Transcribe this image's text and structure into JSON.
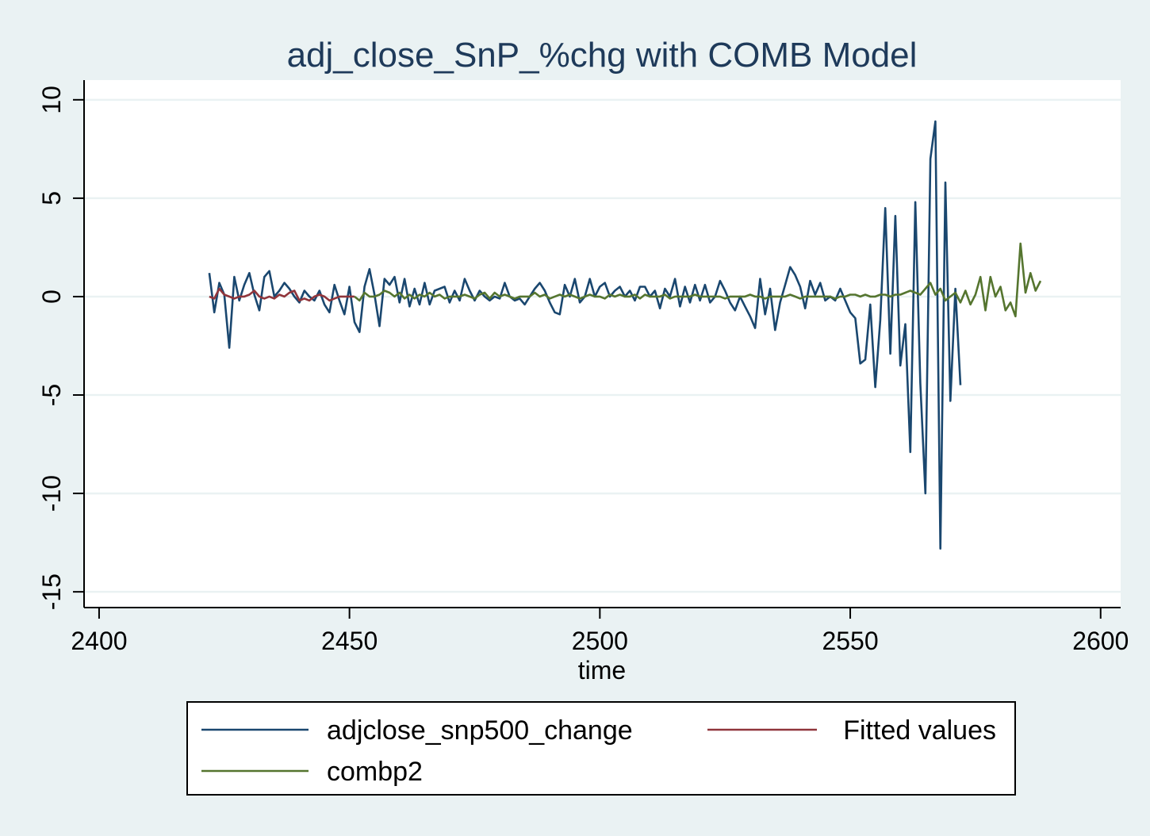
{
  "chart_data": {
    "type": "line",
    "title": "adj_close_SnP_%chg with COMB Model",
    "xlabel": "time",
    "ylabel": "",
    "xlim": [
      2397,
      2604
    ],
    "ylim": [
      -15.8,
      11.0
    ],
    "xticks": [
      2400,
      2450,
      2500,
      2550,
      2600
    ],
    "yticks": [
      -15,
      -10,
      -5,
      0,
      5,
      10
    ],
    "grid": true,
    "legend_position": "bottom",
    "series": [
      {
        "name": "adjclose_snp500_change",
        "color": "#1a476f",
        "x_start": 2422,
        "values": [
          1.2,
          -0.8,
          0.7,
          0.1,
          -2.6,
          1.0,
          -0.2,
          0.6,
          1.2,
          0.1,
          -0.7,
          1.0,
          1.3,
          0.0,
          0.3,
          0.7,
          0.4,
          0.0,
          -0.3,
          0.3,
          0.0,
          -0.2,
          0.3,
          -0.4,
          -0.8,
          0.6,
          -0.2,
          -0.9,
          0.5,
          -1.3,
          -1.8,
          0.5,
          1.4,
          0.1,
          -1.5,
          0.9,
          0.6,
          1.0,
          -0.3,
          0.9,
          -0.5,
          0.4,
          -0.4,
          0.7,
          -0.4,
          0.3,
          0.4,
          0.5,
          -0.3,
          0.3,
          -0.2,
          0.9,
          0.3,
          -0.2,
          0.3,
          0.0,
          -0.2,
          0.0,
          -0.1,
          0.7,
          0.0,
          -0.2,
          -0.1,
          -0.4,
          0.0,
          0.4,
          0.7,
          0.3,
          -0.3,
          -0.8,
          -0.9,
          0.6,
          0.0,
          0.9,
          -0.3,
          0.0,
          0.9,
          0.0,
          0.5,
          0.7,
          0.0,
          0.3,
          0.5,
          0.0,
          0.3,
          -0.2,
          0.5,
          0.5,
          0.0,
          0.3,
          -0.6,
          0.4,
          0.0,
          0.9,
          -0.5,
          0.5,
          -0.3,
          0.6,
          -0.2,
          0.6,
          -0.3,
          0.0,
          0.8,
          0.3,
          -0.3,
          -0.7,
          0.0,
          -0.5,
          -1.0,
          -1.6,
          0.9,
          -0.9,
          0.4,
          -1.7,
          -0.3,
          0.6,
          1.5,
          1.1,
          0.5,
          -0.6,
          0.8,
          0.1,
          0.7,
          -0.2,
          0.0,
          -0.2,
          0.4,
          -0.2,
          -0.8,
          -1.1,
          -3.4,
          -3.2,
          -0.4,
          -4.6,
          -1.2,
          4.5,
          -2.9,
          4.1,
          -3.5,
          -1.4,
          -7.9,
          4.8,
          -4.4,
          -10.0,
          7.0,
          8.9,
          -12.8,
          5.8,
          -5.3,
          0.4,
          -4.5
        ]
      },
      {
        "name": "Fitted values",
        "color": "#90353b",
        "x_start": 2422,
        "values": [
          0.0,
          -0.1,
          0.4,
          0.1,
          0.0,
          -0.1,
          0.0,
          0.0,
          0.1,
          0.3,
          0.0,
          -0.1,
          0.0,
          -0.1,
          0.1,
          0.0,
          0.2,
          0.3,
          -0.2,
          -0.1,
          -0.2,
          0.0,
          0.1,
          0.0,
          -0.2,
          -0.1,
          0.0,
          0.0,
          0.0,
          0.0
        ]
      },
      {
        "name": "combp2",
        "color": "#55752f",
        "x_start": 2451,
        "values": [
          0.0,
          -0.2,
          0.2,
          0.0,
          0.0,
          0.1,
          0.3,
          0.2,
          0.0,
          0.2,
          -0.1,
          0.1,
          -0.1,
          0.1,
          0.0,
          0.2,
          0.0,
          0.1,
          -0.1,
          0.0,
          0.0,
          0.0,
          0.1,
          0.0,
          -0.1,
          0.1,
          0.2,
          -0.1,
          0.2,
          0.0,
          0.1,
          0.0,
          -0.1,
          0.0,
          0.0,
          0.0,
          0.2,
          0.0,
          0.1,
          -0.1,
          0.0,
          0.1,
          0.0,
          0.1,
          0.0,
          -0.1,
          0.0,
          0.1,
          0.0,
          0.0,
          -0.1,
          0.1,
          0.0,
          0.1,
          0.0,
          0.0,
          0.1,
          -0.1,
          0.1,
          0.0,
          0.0,
          0.0,
          0.1,
          -0.1,
          0.0,
          0.0,
          0.0,
          0.0,
          0.1,
          0.0,
          0.0,
          0.0,
          0.0,
          0.0,
          -0.1,
          0.0,
          0.0,
          0.0,
          0.0,
          0.1,
          0.0,
          0.0,
          -0.1,
          0.0,
          0.0,
          0.0,
          0.0,
          0.1,
          0.0,
          -0.1,
          0.0,
          0.0,
          0.0,
          0.0,
          0.0,
          0.0,
          -0.1,
          0.0,
          0.0,
          0.1,
          0.1,
          0.0,
          0.1,
          0.0,
          0.0,
          0.1,
          0.1,
          0.0,
          0.1,
          0.1,
          0.2,
          0.3,
          0.2,
          0.1,
          0.4,
          0.7,
          0.1,
          0.4,
          -0.2,
          0.0,
          0.2,
          -0.3,
          0.3,
          -0.4,
          0.1,
          1.0,
          -0.7,
          1.0,
          0.0,
          0.5,
          -0.7,
          -0.3,
          -1.0,
          2.7,
          0.2,
          1.2,
          0.3,
          0.8
        ]
      }
    ]
  }
}
